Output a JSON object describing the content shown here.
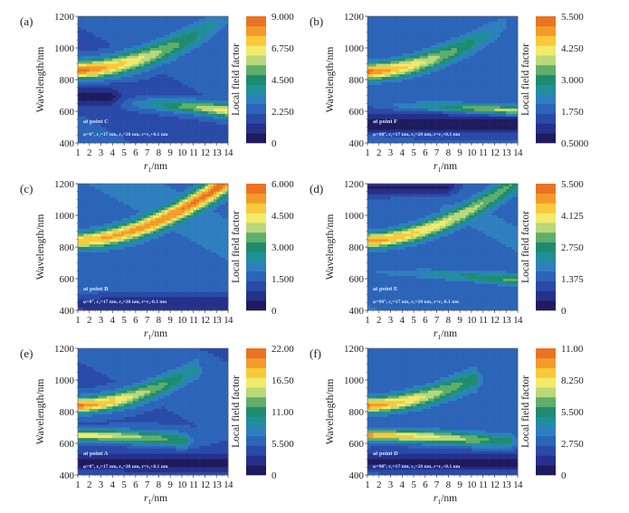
{
  "figure": {
    "xaxis": {
      "label_main": "r",
      "label_sub": "1",
      "label_unit": "/nm",
      "ticks": [
        "1",
        "2",
        "3",
        "4",
        "5",
        "6",
        "7",
        "8",
        "9",
        "10",
        "11",
        "12",
        "13",
        "14"
      ],
      "range": [
        1,
        14
      ]
    },
    "yaxis": {
      "label": "Wavelength/nm",
      "ticks": [
        "400",
        "600",
        "800",
        "1000",
        "1200"
      ],
      "range": [
        400,
        1200
      ]
    },
    "colorbar_label": "Local field factor",
    "colormap": [
      "#1f1b5e",
      "#25308a",
      "#2a4aa8",
      "#2c64b8",
      "#2f7fbf",
      "#1f8f9a",
      "#1f8b6e",
      "#5fae6a",
      "#b9d87a",
      "#f2ea6a",
      "#f8c93a",
      "#f39a2a",
      "#ea7322"
    ]
  },
  "chart_data": [
    {
      "type": "heatmap",
      "panel": "(a)",
      "point_label": "at point C",
      "params_text": "φ=0°, r₂=17 nm, r₃=20 nm, r=r₁+0.1 nm",
      "cbar_ticks": [
        "0",
        "2.250",
        "4.500",
        "6.750",
        "9.000"
      ],
      "cbar_range": [
        0,
        9
      ],
      "background": 2.0,
      "bands": [
        {
          "desc": "main ridge",
          "lam_start": 860,
          "lam_end": 1200,
          "r_end": 14,
          "peak_start": 8.8,
          "peak_end": 3.0,
          "width": 55
        },
        {
          "desc": "lower branch",
          "lam_start": 660,
          "lam_end": 605,
          "r_end": 14,
          "peak_start": 1.0,
          "peak_end": 6.8,
          "width": 28
        }
      ],
      "dark_region": {
        "lam": 690,
        "r_end": 4,
        "value": 0.5
      }
    },
    {
      "type": "heatmap",
      "panel": "(b)",
      "point_label": "at point F",
      "params_text": "φ=90°, r₂=17 nm, r₃=20 nm, r=r₁+0.1 nm",
      "cbar_ticks": [
        "0.5000",
        "1.750",
        "3.000",
        "4.250",
        "5.500"
      ],
      "cbar_range": [
        0.5,
        5.5
      ],
      "background": 1.7,
      "bands": [
        {
          "desc": "main ridge",
          "lam_start": 850,
          "lam_end": 1200,
          "r_end": 14,
          "peak_start": 5.3,
          "peak_end": 1.8,
          "width": 50
        },
        {
          "desc": "lower branch",
          "lam_start": 640,
          "lam_end": 595,
          "r_end": 14,
          "peak_start": 1.6,
          "peak_end": 4.4,
          "width": 22
        }
      ],
      "dark_region": {
        "lam": 520,
        "r_end": 14,
        "value": 0.6
      }
    },
    {
      "type": "heatmap",
      "panel": "(c)",
      "point_label": "at point B",
      "params_text": "φ=0°, r₂=17 nm, r₃=20 nm, r=r₁-0.1 nm",
      "cbar_ticks": [
        "0",
        "1.500",
        "3.000",
        "4.500",
        "6.000"
      ],
      "cbar_range": [
        0,
        6
      ],
      "background": 1.6,
      "bands": [
        {
          "desc": "main ridge",
          "lam_start": 840,
          "lam_end": 1220,
          "r_end": 14,
          "peak_start": 5.0,
          "peak_end": 5.8,
          "width": 48
        },
        {
          "desc": "lower branch",
          "lam_start": 560,
          "lam_end": 560,
          "r_end": 14,
          "peak_start": 0.7,
          "peak_end": 0.5,
          "width": 30
        }
      ],
      "dark_region": {
        "lam": 440,
        "r_end": 14,
        "value": 0.6
      }
    },
    {
      "type": "heatmap",
      "panel": "(d)",
      "point_label": "at point E",
      "params_text": "φ=90°, r₂=17 nm, r₃=20 nm, r=r₁-0.1 nm",
      "cbar_ticks": [
        "0",
        "1.375",
        "2.750",
        "4.125",
        "5.500"
      ],
      "cbar_range": [
        0,
        5.5
      ],
      "background": 1.4,
      "bands": [
        {
          "desc": "main ridge",
          "lam_start": 840,
          "lam_end": 1220,
          "r_end": 14,
          "peak_start": 5.0,
          "peak_end": 2.9,
          "width": 45
        },
        {
          "desc": "lower branch",
          "lam_start": 640,
          "lam_end": 590,
          "r_end": 14,
          "peak_start": 1.6,
          "peak_end": 3.2,
          "width": 22
        }
      ],
      "dark_region": {
        "lam": 1180,
        "r_end": 8,
        "value": 0.4
      }
    },
    {
      "type": "heatmap",
      "panel": "(e)",
      "point_label": "at point A",
      "params_text": "φ=0°, r₂=17 nm, r₃=20 nm, r=r₁+0.1 nm",
      "cbar_ticks": [
        "0",
        "5.500",
        "11.00",
        "16.50",
        "22.00"
      ],
      "cbar_range": [
        0,
        22
      ],
      "background": 5.0,
      "bands": [
        {
          "desc": "upper ridge",
          "lam_start": 840,
          "lam_end": 1060,
          "r_end": 11,
          "peak_start": 21.0,
          "peak_end": 9.0,
          "width": 45
        },
        {
          "desc": "lower ridge",
          "lam_start": 650,
          "lam_end": 620,
          "r_end": 10,
          "peak_start": 17.5,
          "peak_end": 11.0,
          "width": 30
        }
      ],
      "dark_region": {
        "lam": 480,
        "r_end": 14,
        "value": 1.0
      }
    },
    {
      "type": "heatmap",
      "panel": "(f)",
      "point_label": "at point D",
      "params_text": "φ=90°, r₂=17 nm, r₃=20 nm, r=r₁+0.1 nm",
      "cbar_ticks": [
        "0",
        "2.750",
        "5.500",
        "8.250",
        "11.00"
      ],
      "cbar_range": [
        0,
        11
      ],
      "background": 2.6,
      "bands": [
        {
          "desc": "upper ridge",
          "lam_start": 840,
          "lam_end": 1000,
          "r_end": 10,
          "peak_start": 10.3,
          "peak_end": 5.5,
          "width": 45
        },
        {
          "desc": "lower ridge",
          "lam_start": 650,
          "lam_end": 610,
          "r_end": 13,
          "peak_start": 10.0,
          "peak_end": 5.5,
          "width": 30
        }
      ],
      "dark_region": {
        "lam": 480,
        "r_end": 14,
        "value": 0.6
      }
    }
  ]
}
